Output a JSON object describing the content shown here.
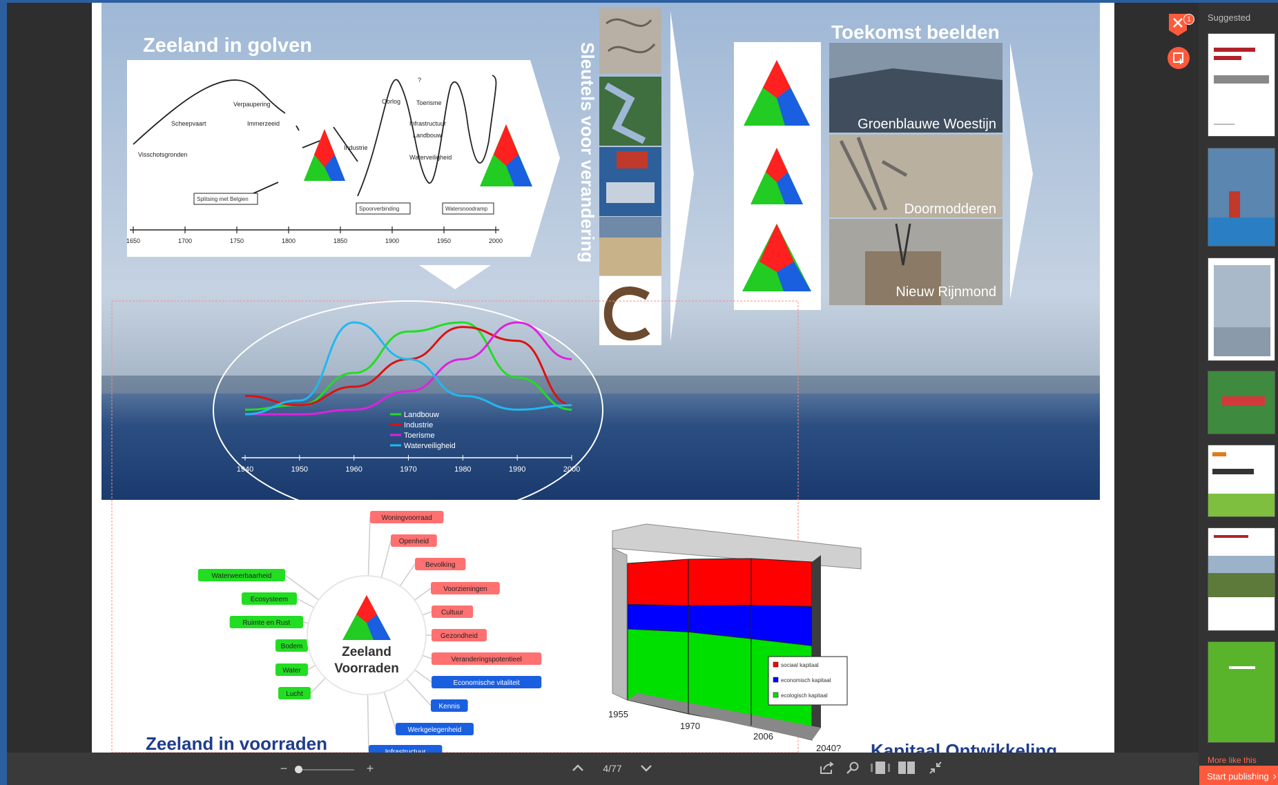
{
  "viewer": {
    "page_indicator": "4/77",
    "suggested_label": "Suggested",
    "more_like_this": "More like this",
    "start_publishing": "Start publishing",
    "notification_count": "1"
  },
  "slide": {
    "waves_title": "Zeeland in golven",
    "keys_title": "Sleutels voor verandering",
    "future_title": "Toekomst beelden",
    "future_images": [
      "Groenblauwe Woestijn",
      "Doormodderen",
      "Nieuw Rijnmond"
    ],
    "stocks_title": "Zeeland in voorraden",
    "capital_title": "Kapitaal Ontwikkeling",
    "centre_label_line1": "Zeeland",
    "centre_label_line2": "Voorraden"
  },
  "history_chart": {
    "labels": [
      "Visschotsgronden",
      "Scheepvaart",
      "Verpaupering",
      "Immerzeeid",
      "Industrie",
      "Oorlog",
      "Toerisme",
      "Infrastructuur",
      "Landbouw",
      "Waterveiligheid",
      "?"
    ],
    "boxes": [
      "Splitsing met Belgien",
      "Spoorverbinding",
      "Watersnoodramp"
    ],
    "ticks": [
      "1650",
      "1700",
      "1750",
      "1800",
      "1850",
      "1900",
      "1950",
      "2000"
    ]
  },
  "chart_data": [
    {
      "type": "line",
      "x": [
        "1940",
        "1950",
        "1960",
        "1970",
        "1980",
        "1990",
        "2000"
      ],
      "series": [
        {
          "name": "Landbouw",
          "values": [
            0.05,
            0.1,
            0.45,
            0.9,
            1.0,
            0.4,
            0.05
          ]
        },
        {
          "name": "Industrie",
          "values": [
            0.2,
            0.1,
            0.3,
            0.6,
            0.95,
            0.8,
            0.1
          ]
        },
        {
          "name": "Toerisme",
          "values": [
            0,
            0,
            0.05,
            0.25,
            0.6,
            1.0,
            0.6
          ]
        },
        {
          "name": "Waterveiligheid",
          "values": [
            0,
            0.15,
            1.0,
            0.6,
            0.2,
            0.05,
            0.1
          ]
        }
      ],
      "legend_position": "center"
    },
    {
      "type": "area",
      "categories": [
        "1955",
        "1970",
        "2006",
        "2040?"
      ],
      "series": [
        {
          "name": "sociaal kapitaal",
          "values": [
            30,
            30,
            28,
            25
          ]
        },
        {
          "name": "economisch kapitaal",
          "values": [
            18,
            17,
            20,
            22
          ]
        },
        {
          "name": "ecologisch kapitaal",
          "values": [
            52,
            53,
            52,
            53
          ]
        }
      ],
      "stacked": true,
      "title": "Kapitaal Ontwikkeling",
      "colors": [
        "#ff0000",
        "#0000ff",
        "#00e000"
      ]
    }
  ],
  "mindmap": {
    "green": [
      "Waterweerbaarheid",
      "Ecosysteem",
      "Ruimte en Rust",
      "Bodem",
      "Water",
      "Lucht"
    ],
    "red": [
      "Woningvoorraad",
      "Openheid",
      "Bevolking",
      "Voorzieningen",
      "Cultuur",
      "Gezondheid",
      "Veranderingspotentieel"
    ],
    "blue": [
      "Economische vitaliteit",
      "Kennis",
      "Werkgelegenheid",
      "Infrastructuur"
    ]
  },
  "colors": {
    "red": "#ff2020",
    "green": "#22cc22",
    "blue": "#1a5fe0",
    "accent": "#ff5a3c"
  }
}
